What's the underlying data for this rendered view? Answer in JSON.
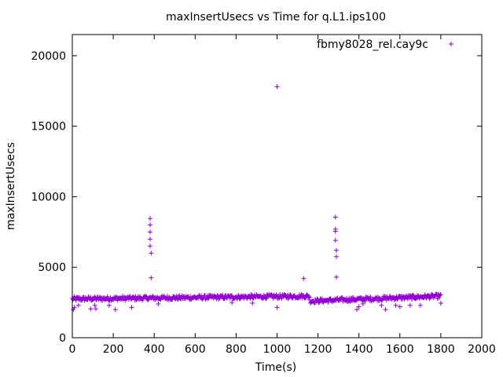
{
  "chart_data": {
    "type": "scatter",
    "title": "maxInsertUsecs vs Time for q.L1.ips100",
    "xlabel": "Time(s)",
    "ylabel": "maxInsertUsecs",
    "xlim": [
      0,
      2000
    ],
    "ylim": [
      0,
      21500
    ],
    "x_ticks": [
      "0",
      "200",
      "400",
      "600",
      "800",
      "1000",
      "1200",
      "1400",
      "1600",
      "1800",
      "2000"
    ],
    "y_ticks": [
      "0",
      "5000",
      "10000",
      "15000",
      "20000"
    ],
    "grid": false,
    "legend_position": "top-right",
    "marker": "+",
    "color": "#9400d3",
    "series": [
      {
        "name": "fbmy8028_rel.cay9c",
        "baseline_segments": [
          {
            "x_start": 0,
            "x_end": 1160,
            "y_start": 2750,
            "y_end": 2950,
            "spread": 150
          },
          {
            "x_start": 1160,
            "x_end": 1800,
            "y_start": 2600,
            "y_end": 2950,
            "spread": 150
          }
        ],
        "outliers": [
          {
            "x": 5,
            "y": 2000
          },
          {
            "x": 10,
            "y": 2150
          },
          {
            "x": 30,
            "y": 2300
          },
          {
            "x": 90,
            "y": 2050
          },
          {
            "x": 110,
            "y": 2300
          },
          {
            "x": 115,
            "y": 2050
          },
          {
            "x": 180,
            "y": 2300
          },
          {
            "x": 210,
            "y": 2000
          },
          {
            "x": 290,
            "y": 2150
          },
          {
            "x": 380,
            "y": 8450
          },
          {
            "x": 380,
            "y": 8000
          },
          {
            "x": 380,
            "y": 7500
          },
          {
            "x": 380,
            "y": 7000
          },
          {
            "x": 380,
            "y": 6500
          },
          {
            "x": 385,
            "y": 6000
          },
          {
            "x": 385,
            "y": 4250
          },
          {
            "x": 420,
            "y": 2400
          },
          {
            "x": 780,
            "y": 2500
          },
          {
            "x": 880,
            "y": 2450
          },
          {
            "x": 1000,
            "y": 17800
          },
          {
            "x": 1000,
            "y": 2150
          },
          {
            "x": 1130,
            "y": 4200
          },
          {
            "x": 1285,
            "y": 8550
          },
          {
            "x": 1285,
            "y": 7700
          },
          {
            "x": 1285,
            "y": 7550
          },
          {
            "x": 1285,
            "y": 6900
          },
          {
            "x": 1290,
            "y": 6200
          },
          {
            "x": 1290,
            "y": 5750
          },
          {
            "x": 1290,
            "y": 4300
          },
          {
            "x": 1390,
            "y": 2000
          },
          {
            "x": 1400,
            "y": 2200
          },
          {
            "x": 1420,
            "y": 2400
          },
          {
            "x": 1510,
            "y": 2300
          },
          {
            "x": 1530,
            "y": 2000
          },
          {
            "x": 1580,
            "y": 2300
          },
          {
            "x": 1600,
            "y": 2200
          },
          {
            "x": 1650,
            "y": 2300
          },
          {
            "x": 1700,
            "y": 2300
          },
          {
            "x": 1800,
            "y": 2450
          }
        ]
      }
    ]
  }
}
